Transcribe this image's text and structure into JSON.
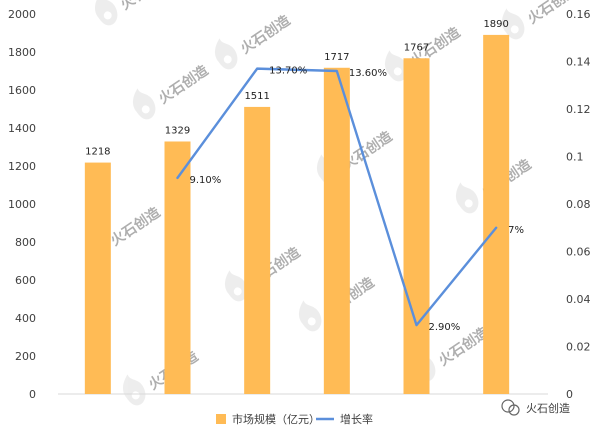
{
  "chart_data": {
    "type": "bar",
    "categories": [
      "",
      "",
      "",
      "",
      "",
      ""
    ],
    "series": [
      {
        "name": "市场规模（亿元）",
        "type": "bar",
        "axis": "left",
        "values": [
          1218,
          1329,
          1511,
          1717,
          1767,
          1890
        ],
        "labels": [
          "1218",
          "1329",
          "1511",
          "1717",
          "1767",
          "1890"
        ],
        "color": "#FFBB55"
      },
      {
        "name": "增长率",
        "type": "line",
        "axis": "right",
        "values": [
          null,
          0.091,
          0.137,
          0.136,
          0.029,
          0.07
        ],
        "labels": [
          "",
          "9.10%",
          "13.70%",
          "13.60%",
          "2.90%",
          "7%"
        ],
        "color": "#5B8FDB"
      }
    ],
    "y_left": {
      "min": 0,
      "max": 2000,
      "ticks": [
        "0",
        "200",
        "400",
        "600",
        "800",
        "1000",
        "1200",
        "1400",
        "1600",
        "1800",
        "2000"
      ]
    },
    "y_right": {
      "min": 0,
      "max": 0.16,
      "ticks": [
        "0",
        "0.02",
        "0.04",
        "0.06",
        "0.08",
        "0.1",
        "0.12",
        "0.14",
        "0.16"
      ]
    },
    "grid": false,
    "legend": "bottom"
  },
  "watermark": {
    "text": "火石创造",
    "colors": {
      "faint": "#D6D6D6"
    }
  }
}
